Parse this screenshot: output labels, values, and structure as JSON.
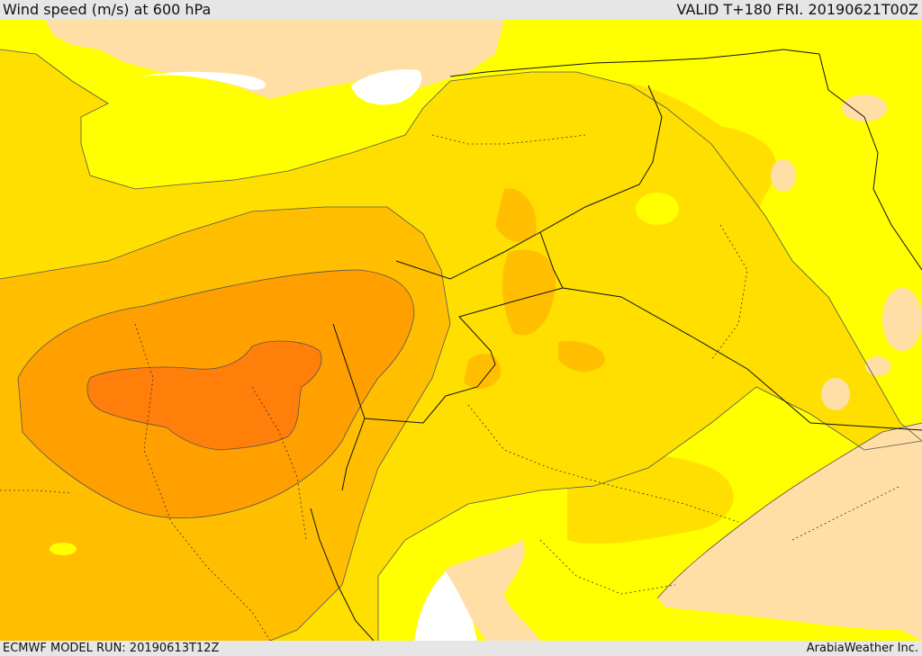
{
  "header": {
    "title": "Wind speed (m/s) at 600 hPa",
    "valid": "VALID T+180 FRI. 20190621T00Z"
  },
  "footer": {
    "model_run": "ECMWF MODEL RUN: 20190613T12Z",
    "credit": "ArabiaWeather Inc."
  },
  "colors": {
    "band_lightest": "#ffff00",
    "band_light": "#ffdf00",
    "band_medium": "#ffbf00",
    "band_strong": "#ff9f00",
    "band_strongest": "#ff7f0a",
    "calm": "#ffdfa6",
    "water": "#ffffff",
    "background": "#e6e6e6"
  }
}
